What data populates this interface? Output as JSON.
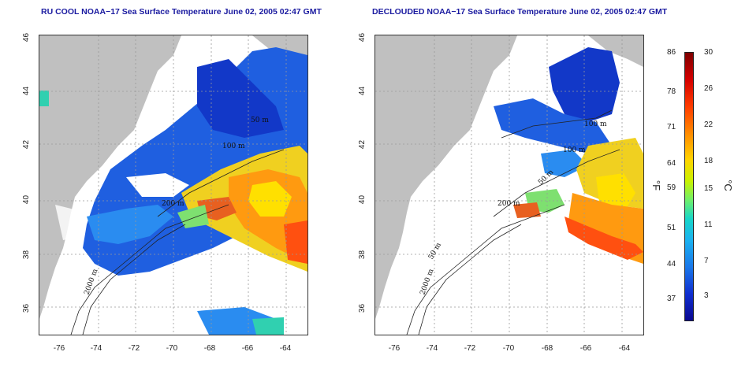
{
  "titles": {
    "left": "RU COOL NOAA−17 Sea Surface Temperature June 02, 2005 02:47 GMT",
    "right": "DECLOUDED NOAA−17 Sea Surface Temperature June 02, 2005 02:47 GMT"
  },
  "x_ticks": [
    "-76",
    "-74",
    "-72",
    "-70",
    "-68",
    "-66",
    "-64"
  ],
  "y_ticks": [
    "46",
    "44",
    "42",
    "40",
    "38",
    "36"
  ],
  "contours": {
    "m50": "50 m",
    "m100": "100 m",
    "m200": "200 m",
    "m2000": "2000 m"
  },
  "colorbar": {
    "fahrenheit": [
      "86",
      "78",
      "71",
      "64",
      "59",
      "51",
      "44",
      "37"
    ],
    "celsius": [
      "30",
      "26",
      "22",
      "18",
      "15",
      "11",
      "7",
      "3"
    ],
    "unit_f": "°F",
    "unit_c": "°C"
  },
  "colors": {
    "land": "#c0c0c0",
    "title": "#1a1aa0"
  }
}
